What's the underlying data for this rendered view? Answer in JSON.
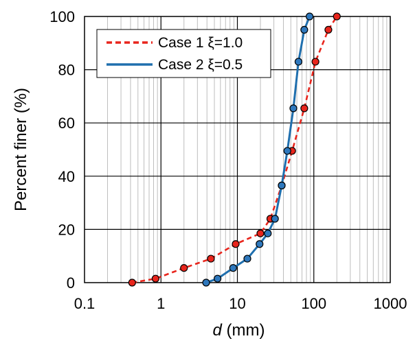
{
  "chart_data": {
    "type": "line",
    "x_scale": "log",
    "xlim": [
      0.1,
      1000
    ],
    "ylim": [
      0,
      100
    ],
    "xlabel_var": "d",
    "xlabel_unit": " (mm)",
    "ylabel": "Percent finer (%)",
    "x_ticks": [
      "0.1",
      "1",
      "10",
      "100",
      "1000"
    ],
    "y_ticks": [
      "0",
      "20",
      "40",
      "60",
      "80",
      "100"
    ],
    "grid": true,
    "legend_position": "top-left",
    "series": [
      {
        "name": "Case 1 ξ=1.0",
        "color": "#e8251c",
        "marker_fill": "#e8251c",
        "line_style": "dashed",
        "points": [
          {
            "x": 0.42,
            "y": 0
          },
          {
            "x": 0.85,
            "y": 1.5
          },
          {
            "x": 2.0,
            "y": 5.5
          },
          {
            "x": 4.5,
            "y": 9
          },
          {
            "x": 9.5,
            "y": 14.5
          },
          {
            "x": 20,
            "y": 18.5
          },
          {
            "x": 27,
            "y": 24
          },
          {
            "x": 38,
            "y": 36.5
          },
          {
            "x": 52,
            "y": 49.5
          },
          {
            "x": 75,
            "y": 65.5
          },
          {
            "x": 105,
            "y": 83
          },
          {
            "x": 155,
            "y": 95
          },
          {
            "x": 200,
            "y": 100
          }
        ]
      },
      {
        "name": "Case 2 ξ=0.5",
        "color": "#1f6fae",
        "marker_fill": "#2e78bd",
        "line_style": "solid",
        "points": [
          {
            "x": 3.9,
            "y": 0
          },
          {
            "x": 5.5,
            "y": 1.5
          },
          {
            "x": 8.8,
            "y": 5.5
          },
          {
            "x": 13.5,
            "y": 9
          },
          {
            "x": 19.5,
            "y": 14.5
          },
          {
            "x": 25,
            "y": 18.5
          },
          {
            "x": 31,
            "y": 24
          },
          {
            "x": 38,
            "y": 36.5
          },
          {
            "x": 45,
            "y": 49.5
          },
          {
            "x": 54,
            "y": 65.5
          },
          {
            "x": 63,
            "y": 83
          },
          {
            "x": 75,
            "y": 95
          },
          {
            "x": 88,
            "y": 100
          }
        ]
      }
    ]
  }
}
